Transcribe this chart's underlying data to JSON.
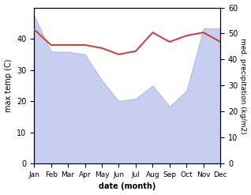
{
  "months": [
    "Jan",
    "Feb",
    "Mar",
    "Apr",
    "May",
    "Jun",
    "Jul",
    "Aug",
    "Sep",
    "Oct",
    "Nov",
    "Dec"
  ],
  "precipitation": [
    57,
    43,
    43,
    42,
    32,
    24,
    25,
    30,
    22,
    28,
    52,
    52
  ],
  "max_temp": [
    43,
    38,
    38,
    38,
    37,
    35,
    36,
    42,
    39,
    41,
    42,
    39
  ],
  "precip_fill_color": "#aab4e8",
  "precip_fill_alpha": 0.65,
  "temp_color": "#cc4444",
  "temp_linewidth": 1.5,
  "ylabel_left": "max temp (C)",
  "ylabel_right": "med. precipitation (kg/m2)",
  "xlabel": "date (month)",
  "ylim_left": [
    0,
    50
  ],
  "ylim_right": [
    0,
    60
  ],
  "yticks_left": [
    0,
    10,
    20,
    30,
    40
  ],
  "yticks_right": [
    0,
    10,
    20,
    30,
    40,
    50,
    60
  ],
  "background_color": "#ffffff"
}
